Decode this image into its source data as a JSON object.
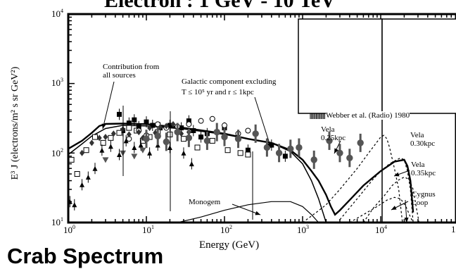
{
  "titles": {
    "top": "Electron : 1 GeV - 10 TeV",
    "bottom": "Crab Spectrum"
  },
  "chart_data": {
    "type": "scatter",
    "title": "Electron : 1 GeV - 10 TeV",
    "xlabel": "Energy (GeV)",
    "ylabel": "E³ J (electrons/m² s sr GeV²)",
    "xscale": "log",
    "yscale": "log",
    "xlim": [
      1,
      100000
    ],
    "ylim": [
      10,
      10000
    ],
    "x_ticks": [
      {
        "base": "10",
        "exp": "0"
      },
      {
        "base": "10",
        "exp": "1"
      },
      {
        "base": "10",
        "exp": "2"
      },
      {
        "base": "10",
        "exp": "3"
      },
      {
        "base": "10",
        "exp": "4"
      },
      {
        "base": "1",
        "exp": ""
      }
    ],
    "y_ticks": [
      {
        "base": "10",
        "exp": "1"
      },
      {
        "base": "10",
        "exp": "2"
      },
      {
        "base": "10",
        "exp": "3"
      },
      {
        "base": "10",
        "exp": "4"
      }
    ],
    "annotations": {
      "total": "Contribution from\nall sources",
      "galactic_1": "Galactic component excluding",
      "galactic_2": "T ≤ 10⁵ yr and r ≤ 1kpc",
      "webber": "Webber et al. (Radio) 1980",
      "vela25": "Vela\n0.25kpc",
      "vela30": "Vela\n0.30kpc",
      "vela35": "Vela\n0.35kpc",
      "cygnus": "Cygnus\nLoop",
      "monogem": "Monogem"
    },
    "curves": {
      "total": [
        [
          1,
          115
        ],
        [
          1.5,
          150
        ],
        [
          2,
          195
        ],
        [
          2.5,
          245
        ],
        [
          3,
          262
        ],
        [
          5,
          265
        ],
        [
          10,
          260
        ],
        [
          30,
          230
        ],
        [
          100,
          190
        ],
        [
          200,
          160
        ],
        [
          400,
          140
        ],
        [
          700,
          110
        ],
        [
          1000,
          80
        ],
        [
          1300,
          55
        ],
        [
          1600,
          40
        ],
        [
          2000,
          25
        ],
        [
          2300,
          17
        ],
        [
          2600,
          13
        ],
        [
          3000,
          15
        ],
        [
          4000,
          21
        ],
        [
          6000,
          34
        ],
        [
          10000,
          55
        ],
        [
          15000,
          75
        ],
        [
          20000,
          80
        ],
        [
          22000,
          65
        ],
        [
          24000,
          40
        ],
        [
          26000,
          14
        ]
      ],
      "galactic": [
        [
          1,
          95
        ],
        [
          1.5,
          135
        ],
        [
          2,
          175
        ],
        [
          3,
          225
        ],
        [
          5,
          250
        ],
        [
          10,
          245
        ],
        [
          30,
          222
        ],
        [
          100,
          185
        ],
        [
          200,
          160
        ],
        [
          400,
          140
        ],
        [
          700,
          105
        ],
        [
          1000,
          70
        ],
        [
          1300,
          40
        ],
        [
          1600,
          22
        ],
        [
          2000,
          10
        ]
      ],
      "vela25": [
        [
          1000,
          10
        ],
        [
          1500,
          14
        ],
        [
          2000,
          18
        ],
        [
          3000,
          30
        ],
        [
          5000,
          60
        ],
        [
          7000,
          100
        ],
        [
          9000,
          145
        ],
        [
          10000,
          170
        ],
        [
          11000,
          180
        ],
        [
          12000,
          160
        ],
        [
          13000,
          120
        ],
        [
          15000,
          60
        ],
        [
          17000,
          30
        ],
        [
          19000,
          10
        ]
      ],
      "vela30": [
        [
          3000,
          11
        ],
        [
          5000,
          22
        ],
        [
          8000,
          42
        ],
        [
          10000,
          55
        ],
        [
          13000,
          70
        ],
        [
          16000,
          80
        ],
        [
          18000,
          85
        ],
        [
          20000,
          80
        ],
        [
          22000,
          55
        ],
        [
          24000,
          30
        ],
        [
          26000,
          10
        ]
      ],
      "vela35": [
        [
          6000,
          10
        ],
        [
          8000,
          16
        ],
        [
          11000,
          24
        ],
        [
          14000,
          34
        ],
        [
          17000,
          41
        ],
        [
          20000,
          45
        ],
        [
          23000,
          42
        ],
        [
          26000,
          30
        ],
        [
          29000,
          15
        ],
        [
          31000,
          10
        ]
      ],
      "monogem": [
        [
          25,
          10
        ],
        [
          50,
          12
        ],
        [
          100,
          15
        ],
        [
          200,
          18
        ],
        [
          400,
          20
        ],
        [
          700,
          20
        ],
        [
          1000,
          17
        ],
        [
          1300,
          13
        ],
        [
          1600,
          10
        ]
      ],
      "cygnus": [
        [
          4000,
          10
        ],
        [
          6000,
          13
        ],
        [
          9000,
          17
        ],
        [
          12000,
          21
        ],
        [
          15000,
          23
        ],
        [
          18000,
          22
        ],
        [
          21000,
          17
        ],
        [
          24000,
          12
        ],
        [
          26000,
          10
        ]
      ]
    },
    "series": [
      {
        "marker": "filled-square",
        "points": [
          [
            4.5,
            360
          ],
          [
            5,
            210
          ],
          [
            6,
            270
          ],
          [
            7,
            300
          ],
          [
            8,
            240
          ],
          [
            10,
            280
          ],
          [
            12,
            250
          ],
          [
            15,
            230
          ],
          [
            20,
            250
          ],
          [
            28,
            230
          ],
          [
            35,
            290
          ],
          [
            40,
            210
          ],
          [
            50,
            170
          ],
          [
            60,
            190
          ],
          [
            80,
            200
          ],
          [
            100,
            230
          ],
          [
            150,
            160
          ],
          [
            200,
            110
          ],
          [
            400,
            130
          ],
          [
            600,
            90
          ]
        ]
      },
      {
        "marker": "open-square",
        "points": [
          [
            1.1,
            80
          ],
          [
            1.3,
            50
          ],
          [
            1.7,
            110
          ],
          [
            2.2,
            170
          ],
          [
            2.8,
            140
          ],
          [
            3.5,
            165
          ],
          [
            4.5,
            195
          ],
          [
            6,
            230
          ],
          [
            7.5,
            210
          ],
          [
            9,
            150
          ],
          [
            11,
            170
          ],
          [
            14,
            200
          ],
          [
            20,
            185
          ],
          [
            30,
            160
          ],
          [
            45,
            120
          ],
          [
            70,
            150
          ],
          [
            110,
            110
          ],
          [
            160,
            100
          ],
          [
            200,
            95
          ]
        ]
      },
      {
        "marker": "open-circle",
        "points": [
          [
            6,
            160
          ],
          [
            8,
            210
          ],
          [
            10,
            180
          ],
          [
            14,
            260
          ],
          [
            18,
            230
          ],
          [
            25,
            240
          ],
          [
            35,
            260
          ],
          [
            50,
            290
          ],
          [
            70,
            310
          ],
          [
            100,
            250
          ],
          [
            150,
            190
          ],
          [
            200,
            210
          ]
        ]
      },
      {
        "marker": "filled-triangle",
        "points": [
          [
            1.05,
            20
          ],
          [
            1.2,
            18
          ],
          [
            1.5,
            35
          ],
          [
            1.8,
            45
          ],
          [
            2.2,
            60
          ],
          [
            2.7,
            110
          ],
          [
            3.5,
            125
          ],
          [
            4.5,
            95
          ],
          [
            5.5,
            150
          ],
          [
            7,
            120
          ],
          [
            8.5,
            130
          ],
          [
            11,
            100
          ],
          [
            14,
            130
          ],
          [
            20,
            120
          ],
          [
            30,
            100
          ],
          [
            38,
            70
          ]
        ]
      },
      {
        "marker": "filled-diamond",
        "points": [
          [
            1.5,
            100
          ],
          [
            2,
            140
          ],
          [
            2.5,
            165
          ],
          [
            3,
            170
          ],
          [
            3.8,
            190
          ],
          [
            5,
            220
          ],
          [
            6,
            185
          ],
          [
            8,
            200
          ],
          [
            9,
            165
          ],
          [
            11,
            230
          ],
          [
            13,
            195
          ],
          [
            15,
            235
          ],
          [
            18,
            245
          ],
          [
            22,
            260
          ],
          [
            28,
            190
          ],
          [
            35,
            200
          ]
        ]
      },
      {
        "marker": "filled-circle",
        "points": [
          [
            10,
            160
          ],
          [
            14,
            175
          ],
          [
            18,
            145
          ],
          [
            25,
            200
          ],
          [
            35,
            165
          ],
          [
            60,
            150
          ],
          [
            80,
            200
          ],
          [
            100,
            170
          ],
          [
            150,
            160
          ],
          [
            250,
            190
          ],
          [
            350,
            120
          ],
          [
            500,
            100
          ],
          [
            700,
            115
          ],
          [
            900,
            120
          ],
          [
            1400,
            80
          ],
          [
            2200,
            150
          ],
          [
            3000,
            100
          ],
          [
            4000,
            85
          ],
          [
            5500,
            140
          ]
        ]
      },
      {
        "marker": "inverted-triangle",
        "points": [
          [
            3,
            80
          ],
          [
            5,
            100
          ],
          [
            7,
            90
          ],
          [
            9,
            110
          ]
        ]
      }
    ],
    "legend_box": "Webber et al. (Radio) 1980"
  }
}
